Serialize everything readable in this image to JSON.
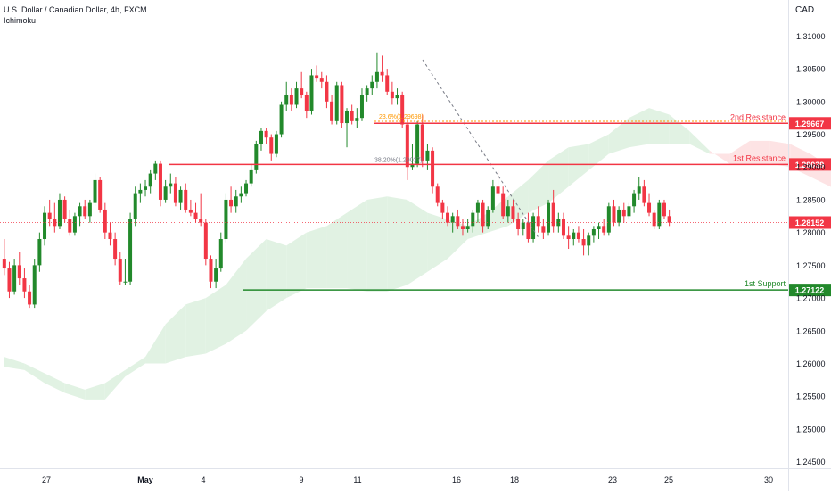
{
  "header": {
    "symbol_line": "U.S. Dollar / Canadian Dollar, 4h, FXCM",
    "indicator": "Ichimoku"
  },
  "chart_data": {
    "type": "candlestick",
    "currency": "CAD",
    "ylim": [
      1.244,
      1.3155
    ],
    "y_ticks": [
      "1.31000",
      "1.30500",
      "1.30000",
      "1.29500",
      "1.29000",
      "1.28500",
      "1.28000",
      "1.27500",
      "1.27000",
      "1.26500",
      "1.26000",
      "1.25500",
      "1.25000",
      "1.24500"
    ],
    "x_ticks": [
      "27",
      "May",
      "4",
      "9",
      "11",
      "16",
      "18",
      "23",
      "25",
      "30"
    ],
    "levels": [
      {
        "label": "2nd Resistance",
        "price_label": "1.29667",
        "value": 1.29667,
        "color": "#f23645"
      },
      {
        "label": "1st Resistance",
        "price_label": "1.29039",
        "value": 1.29039,
        "color": "#f23645"
      },
      {
        "label": "1st Support",
        "price_label": "1.27122",
        "value": 1.27122,
        "color": "#22892b"
      }
    ],
    "current_price": {
      "price_label": "1.28152",
      "value": 1.28152,
      "color": "#f23645"
    },
    "fib_annotations": [
      {
        "text": "23.6%(1.29698)",
        "value": 1.29698,
        "color": "#ff9800"
      },
      {
        "text": "38.20%(1.29037)",
        "value": 1.29037,
        "color": "#787b86"
      }
    ],
    "colors": {
      "up": "#22892b",
      "down": "#f23645",
      "cloud_up": "#e1f2e3",
      "cloud_down": "#fde3e4"
    },
    "candles": [
      [
        1.276,
        1.279,
        1.2735,
        1.2745
      ],
      [
        1.2745,
        1.2755,
        1.27,
        1.271
      ],
      [
        1.271,
        1.276,
        1.2705,
        1.275
      ],
      [
        1.275,
        1.277,
        1.272,
        1.273
      ],
      [
        1.273,
        1.2745,
        1.27,
        1.271
      ],
      [
        1.271,
        1.272,
        1.2685,
        1.269
      ],
      [
        1.269,
        1.276,
        1.2685,
        1.275
      ],
      [
        1.275,
        1.28,
        1.274,
        1.279
      ],
      [
        1.279,
        1.284,
        1.278,
        1.283
      ],
      [
        1.283,
        1.285,
        1.281,
        1.282
      ],
      [
        1.282,
        1.2845,
        1.28,
        1.281
      ],
      [
        1.281,
        1.286,
        1.2805,
        1.285
      ],
      [
        1.285,
        1.2855,
        1.2815,
        1.282
      ],
      [
        1.282,
        1.2835,
        1.2795,
        1.28
      ],
      [
        1.28,
        1.283,
        1.2795,
        1.2825
      ],
      [
        1.2825,
        1.2845,
        1.281,
        1.284
      ],
      [
        1.284,
        1.285,
        1.282,
        1.2825
      ],
      [
        1.2825,
        1.285,
        1.2815,
        1.2845
      ],
      [
        1.2845,
        1.289,
        1.284,
        1.288
      ],
      [
        1.288,
        1.2885,
        1.283,
        1.2835
      ],
      [
        1.2835,
        1.2845,
        1.279,
        1.28
      ],
      [
        1.28,
        1.2815,
        1.278,
        1.279
      ],
      [
        1.279,
        1.28,
        1.275,
        1.276
      ],
      [
        1.276,
        1.277,
        1.272,
        1.2725
      ],
      [
        1.2725,
        1.276,
        1.272,
        1.2725
      ],
      [
        1.2725,
        1.283,
        1.272,
        1.282
      ],
      [
        1.282,
        1.287,
        1.281,
        1.286
      ],
      [
        1.286,
        1.2875,
        1.2845,
        1.2865
      ],
      [
        1.2865,
        1.288,
        1.2855,
        1.287
      ],
      [
        1.287,
        1.2895,
        1.286,
        1.289
      ],
      [
        1.289,
        1.291,
        1.288,
        1.2905
      ],
      [
        1.2905,
        1.291,
        1.284,
        1.285
      ],
      [
        1.285,
        1.288,
        1.2845,
        1.287
      ],
      [
        1.287,
        1.289,
        1.286,
        1.2875
      ],
      [
        1.2875,
        1.2885,
        1.284,
        1.2845
      ],
      [
        1.2845,
        1.287,
        1.2835,
        1.2865
      ],
      [
        1.2865,
        1.2875,
        1.283,
        1.2835
      ],
      [
        1.2835,
        1.285,
        1.2825,
        1.283
      ],
      [
        1.283,
        1.2845,
        1.2815,
        1.282
      ],
      [
        1.282,
        1.286,
        1.281,
        1.2815
      ],
      [
        1.2815,
        1.282,
        1.275,
        1.276
      ],
      [
        1.276,
        1.2765,
        1.2715,
        1.2725
      ],
      [
        1.2725,
        1.276,
        1.2715,
        1.2745
      ],
      [
        1.2745,
        1.28,
        1.274,
        1.279
      ],
      [
        1.279,
        1.286,
        1.2785,
        1.285
      ],
      [
        1.285,
        1.287,
        1.283,
        1.284
      ],
      [
        1.284,
        1.2865,
        1.283,
        1.2855
      ],
      [
        1.2855,
        1.287,
        1.2845,
        1.286
      ],
      [
        1.286,
        1.288,
        1.2855,
        1.2875
      ],
      [
        1.2875,
        1.2905,
        1.287,
        1.2895
      ],
      [
        1.2895,
        1.294,
        1.289,
        1.2935
      ],
      [
        1.2935,
        1.296,
        1.2925,
        1.2955
      ],
      [
        1.2955,
        1.296,
        1.2935,
        1.2945
      ],
      [
        1.2945,
        1.295,
        1.291,
        1.292
      ],
      [
        1.292,
        1.2955,
        1.2915,
        1.295
      ],
      [
        1.295,
        1.3,
        1.2945,
        1.2995
      ],
      [
        1.2995,
        1.303,
        1.2985,
        1.301
      ],
      [
        1.301,
        1.302,
        1.2985,
        1.2995
      ],
      [
        1.2995,
        1.303,
        1.299,
        1.302
      ],
      [
        1.302,
        1.3045,
        1.3005,
        1.301
      ],
      [
        1.301,
        1.3015,
        1.2975,
        1.2985
      ],
      [
        1.2985,
        1.305,
        1.298,
        1.304
      ],
      [
        1.304,
        1.3055,
        1.303,
        1.3035
      ],
      [
        1.3035,
        1.3045,
        1.302,
        1.303
      ],
      [
        1.303,
        1.304,
        1.299,
        1.3
      ],
      [
        1.3,
        1.301,
        1.2965,
        1.297
      ],
      [
        1.297,
        1.303,
        1.2965,
        1.3025
      ],
      [
        1.3025,
        1.303,
        1.296,
        1.2967
      ],
      [
        1.2967,
        1.299,
        1.293,
        1.2985
      ],
      [
        1.2985,
        1.2995,
        1.2965,
        1.297
      ],
      [
        1.297,
        1.299,
        1.296,
        1.2975
      ],
      [
        1.2975,
        1.302,
        1.297,
        1.301
      ],
      [
        1.301,
        1.3025,
        1.3,
        1.302
      ],
      [
        1.302,
        1.304,
        1.301,
        1.303
      ],
      [
        1.303,
        1.3075,
        1.302,
        1.3045
      ],
      [
        1.3045,
        1.307,
        1.303,
        1.304
      ],
      [
        1.304,
        1.305,
        1.301,
        1.3015
      ],
      [
        1.3015,
        1.303,
        1.2995,
        1.3005
      ],
      [
        1.3005,
        1.302,
        1.2995,
        1.301
      ],
      [
        1.301,
        1.3015,
        1.296,
        1.2965
      ],
      [
        1.2965,
        1.2975,
        1.288,
        1.29
      ],
      [
        1.29,
        1.2935,
        1.2895,
        1.2905
      ],
      [
        1.2905,
        1.297,
        1.29,
        1.2965
      ],
      [
        1.2965,
        1.298,
        1.29,
        1.291
      ],
      [
        1.291,
        1.2935,
        1.2895,
        1.2925
      ],
      [
        1.2925,
        1.293,
        1.286,
        1.287
      ],
      [
        1.287,
        1.2875,
        1.284,
        1.2845
      ],
      [
        1.2845,
        1.285,
        1.282,
        1.283
      ],
      [
        1.283,
        1.284,
        1.281,
        1.2815
      ],
      [
        1.2815,
        1.283,
        1.28,
        1.2825
      ],
      [
        1.2825,
        1.2835,
        1.2805,
        1.281
      ],
      [
        1.281,
        1.282,
        1.2795,
        1.2805
      ],
      [
        1.2805,
        1.282,
        1.28,
        1.281
      ],
      [
        1.281,
        1.2835,
        1.28,
        1.283
      ],
      [
        1.283,
        1.285,
        1.2815,
        1.2845
      ],
      [
        1.2845,
        1.285,
        1.28,
        1.281
      ],
      [
        1.281,
        1.284,
        1.2805,
        1.2835
      ],
      [
        1.2835,
        1.288,
        1.283,
        1.287
      ],
      [
        1.287,
        1.2895,
        1.2855,
        1.286
      ],
      [
        1.286,
        1.287,
        1.282,
        1.2825
      ],
      [
        1.2825,
        1.285,
        1.2815,
        1.284
      ],
      [
        1.284,
        1.285,
        1.2815,
        1.282
      ],
      [
        1.282,
        1.283,
        1.2795,
        1.2805
      ],
      [
        1.2805,
        1.282,
        1.2795,
        1.2815
      ],
      [
        1.2815,
        1.283,
        1.2785,
        1.279
      ],
      [
        1.279,
        1.283,
        1.2785,
        1.2825
      ],
      [
        1.2825,
        1.284,
        1.28,
        1.281
      ],
      [
        1.281,
        1.282,
        1.279,
        1.28
      ],
      [
        1.28,
        1.285,
        1.2795,
        1.2845
      ],
      [
        1.2845,
        1.2865,
        1.28,
        1.281
      ],
      [
        1.281,
        1.283,
        1.28,
        1.282
      ],
      [
        1.282,
        1.283,
        1.279,
        1.2795
      ],
      [
        1.2795,
        1.281,
        1.2775,
        1.279
      ],
      [
        1.279,
        1.2805,
        1.278,
        1.28
      ],
      [
        1.28,
        1.281,
        1.2785,
        1.279
      ],
      [
        1.279,
        1.2805,
        1.2765,
        1.278
      ],
      [
        1.278,
        1.28,
        1.2765,
        1.2795
      ],
      [
        1.2795,
        1.281,
        1.2785,
        1.2805
      ],
      [
        1.2805,
        1.2815,
        1.279,
        1.281
      ],
      [
        1.281,
        1.282,
        1.2795,
        1.28
      ],
      [
        1.28,
        1.2845,
        1.2795,
        1.284
      ],
      [
        1.284,
        1.285,
        1.281,
        1.2815
      ],
      [
        1.2815,
        1.284,
        1.281,
        1.2835
      ],
      [
        1.2835,
        1.2845,
        1.2815,
        1.2825
      ],
      [
        1.2825,
        1.2845,
        1.282,
        1.284
      ],
      [
        1.284,
        1.2865,
        1.283,
        1.286
      ],
      [
        1.286,
        1.2885,
        1.285,
        1.287
      ],
      [
        1.287,
        1.288,
        1.284,
        1.2845
      ],
      [
        1.2845,
        1.286,
        1.2825,
        1.283
      ],
      [
        1.283,
        1.2835,
        1.2805,
        1.281
      ],
      [
        1.281,
        1.285,
        1.2805,
        1.2845
      ],
      [
        1.2845,
        1.285,
        1.282,
        1.2825
      ],
      [
        1.2825,
        1.2835,
        1.281,
        1.2815
      ]
    ],
    "cloud": [
      {
        "i": 0,
        "a": 1.261,
        "b": 1.2595
      },
      {
        "i": 4,
        "a": 1.26,
        "b": 1.259
      },
      {
        "i": 8,
        "a": 1.2585,
        "b": 1.257
      },
      {
        "i": 12,
        "a": 1.257,
        "b": 1.2555
      },
      {
        "i": 16,
        "a": 1.256,
        "b": 1.2545
      },
      {
        "i": 20,
        "a": 1.257,
        "b": 1.2545
      },
      {
        "i": 24,
        "a": 1.259,
        "b": 1.258
      },
      {
        "i": 28,
        "a": 1.261,
        "b": 1.26
      },
      {
        "i": 32,
        "a": 1.266,
        "b": 1.26
      },
      {
        "i": 36,
        "a": 1.269,
        "b": 1.261
      },
      {
        "i": 40,
        "a": 1.27,
        "b": 1.2615
      },
      {
        "i": 44,
        "a": 1.272,
        "b": 1.263
      },
      {
        "i": 48,
        "a": 1.276,
        "b": 1.265
      },
      {
        "i": 52,
        "a": 1.279,
        "b": 1.268
      },
      {
        "i": 56,
        "a": 1.278,
        "b": 1.27
      },
      {
        "i": 60,
        "a": 1.28,
        "b": 1.2715
      },
      {
        "i": 64,
        "a": 1.281,
        "b": 1.2715
      },
      {
        "i": 68,
        "a": 1.283,
        "b": 1.2715
      },
      {
        "i": 72,
        "a": 1.285,
        "b": 1.271
      },
      {
        "i": 76,
        "a": 1.2855,
        "b": 1.271
      },
      {
        "i": 80,
        "a": 1.285,
        "b": 1.272
      },
      {
        "i": 84,
        "a": 1.283,
        "b": 1.274
      },
      {
        "i": 88,
        "a": 1.282,
        "b": 1.276
      },
      {
        "i": 92,
        "a": 1.281,
        "b": 1.279
      },
      {
        "i": 96,
        "a": 1.283,
        "b": 1.28
      },
      {
        "i": 100,
        "a": 1.2855,
        "b": 1.281
      },
      {
        "i": 104,
        "a": 1.288,
        "b": 1.283
      },
      {
        "i": 108,
        "a": 1.291,
        "b": 1.2845
      },
      {
        "i": 112,
        "a": 1.293,
        "b": 1.287
      },
      {
        "i": 116,
        "a": 1.2935,
        "b": 1.2895
      },
      {
        "i": 120,
        "a": 1.295,
        "b": 1.292
      },
      {
        "i": 124,
        "a": 1.2975,
        "b": 1.293
      },
      {
        "i": 128,
        "a": 1.299,
        "b": 1.2935
      },
      {
        "i": 132,
        "a": 1.298,
        "b": 1.2935
      },
      {
        "i": 136,
        "a": 1.2955,
        "b": 1.2935
      },
      {
        "i": 140,
        "a": 1.2925,
        "b": 1.292
      },
      {
        "i": 144,
        "a": 1.2905,
        "b": 1.292
      },
      {
        "i": 148,
        "a": 1.2905,
        "b": 1.294
      },
      {
        "i": 152,
        "a": 1.2905,
        "b": 1.294
      },
      {
        "i": 156,
        "a": 1.29,
        "b": 1.2935
      },
      {
        "i": 160,
        "a": 1.2885,
        "b": 1.292
      },
      {
        "i": 164,
        "a": 1.287,
        "b": 1.29
      },
      {
        "i": 168,
        "a": 1.285,
        "b": 1.288
      },
      {
        "i": 172,
        "a": 1.2835,
        "b": 1.2865
      },
      {
        "i": 176,
        "a": 1.2825,
        "b": 1.2845
      }
    ]
  }
}
